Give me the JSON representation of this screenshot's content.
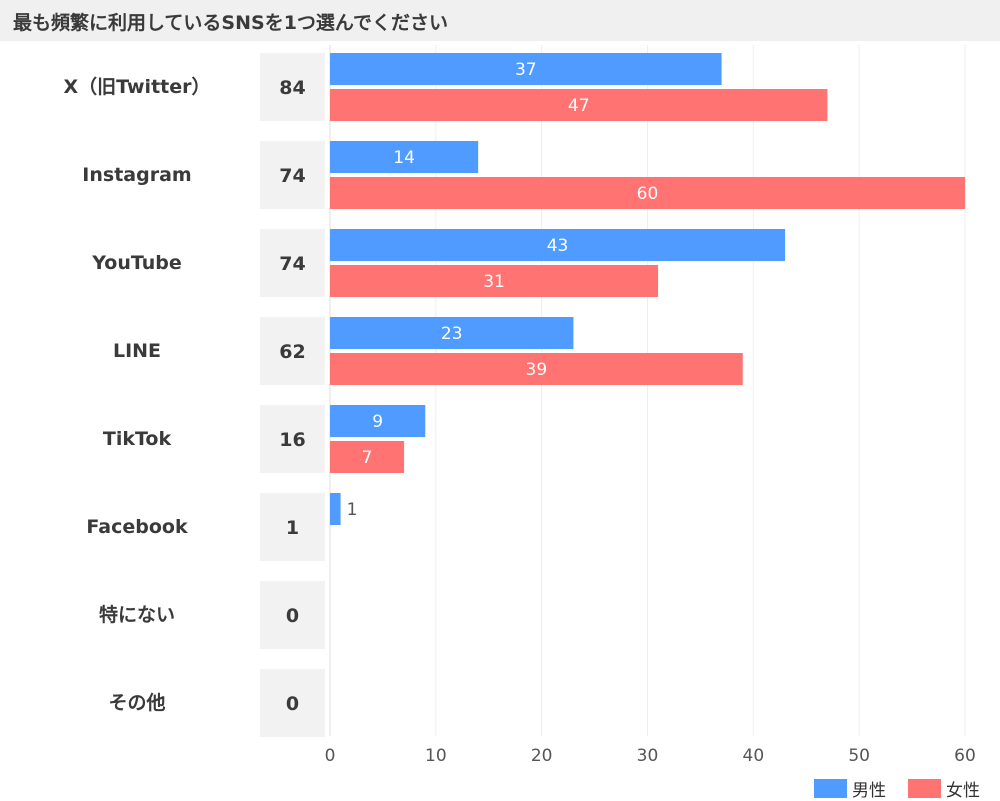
{
  "chart_data": {
    "type": "bar",
    "title": "最も頻繁に利用しているSNSを1つ選んでください",
    "categories": [
      "X（旧Twitter）",
      "Instagram",
      "YouTube",
      "LINE",
      "TikTok",
      "Facebook",
      "特にない",
      "その他"
    ],
    "totals": [
      84,
      74,
      74,
      62,
      16,
      1,
      0,
      0
    ],
    "series": [
      {
        "name": "男性",
        "color": "#4f9bff",
        "values": [
          37,
          14,
          43,
          23,
          9,
          1,
          0,
          0
        ]
      },
      {
        "name": "女性",
        "color": "#ff7373",
        "values": [
          47,
          60,
          31,
          39,
          7,
          0,
          0,
          0
        ]
      }
    ],
    "xlim": [
      0,
      60
    ],
    "xticks": [
      0,
      10,
      20,
      30,
      40,
      50,
      60
    ],
    "grid": true,
    "orientation": "horizontal",
    "legend_position": "bottom-right"
  }
}
